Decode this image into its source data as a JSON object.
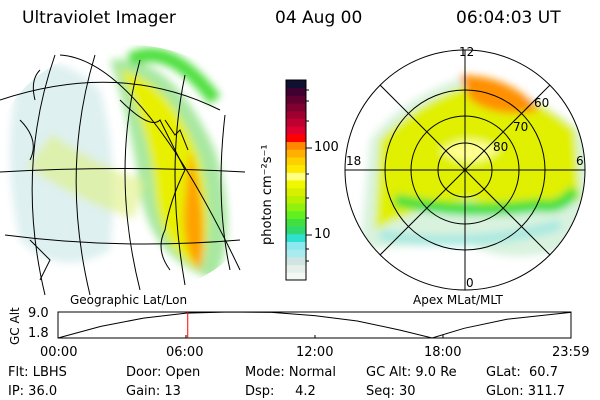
{
  "header": {
    "instrument": "Ultraviolet Imager",
    "date": "04 Aug 00",
    "time": "06:04:03 UT"
  },
  "left_panel": {
    "label": "Geographic Lat/Lon"
  },
  "right_panel": {
    "label": "Apex MLat/MLT",
    "mlt_labels": [
      "12",
      "18",
      "6",
      "0"
    ],
    "mlat_labels": [
      "60",
      "70",
      "80"
    ]
  },
  "colorbar": {
    "label": "photon cm⁻²s⁻¹",
    "tick_labels": [
      "100",
      "10"
    ],
    "scale": "log",
    "colors": [
      "#f4f8f4",
      "#e6f0ea",
      "#d0e4e2",
      "#a8ecf0",
      "#8ee8f0",
      "#30e0d0",
      "#30d870",
      "#40e040",
      "#60f020",
      "#90f010",
      "#b8f000",
      "#d8f000",
      "#f0f800",
      "#ffff80",
      "#ffe800",
      "#ffd000",
      "#ffb000",
      "#ff8800",
      "#ff0000",
      "#e00030",
      "#c00030",
      "#a00030",
      "#800030",
      "#600030",
      "#400030",
      "#101030"
    ]
  },
  "chart_data": {
    "type": "line",
    "ylabel": "GC Alt",
    "ytick_labels": [
      "9.0",
      "1.8"
    ],
    "xtick_labels": [
      "00:00",
      "06:00",
      "12:00",
      "18:00",
      "23:59"
    ],
    "x_hours": [
      0,
      2,
      4,
      6,
      8,
      10,
      12,
      14,
      16,
      17.5,
      19,
      21,
      23.98
    ],
    "y_re": [
      1.8,
      5.0,
      7.3,
      8.7,
      9.0,
      8.9,
      8.0,
      6.5,
      4.0,
      1.8,
      4.5,
      7.0,
      8.9
    ],
    "ylim": [
      1.8,
      9.0
    ],
    "current_time_hours": 6.07,
    "current_marker_color": "#ff0000"
  },
  "info": {
    "row1": [
      "Flt: LBHS",
      "Door: Open",
      "Mode: Normal",
      "GC Alt: 9.0 Re",
      "GLat:  60.7"
    ],
    "row2": [
      "IP: 36.0",
      "Gain: 13",
      "Dsp:     4.2",
      "Seq: 30",
      "GLon: 311.7"
    ]
  }
}
